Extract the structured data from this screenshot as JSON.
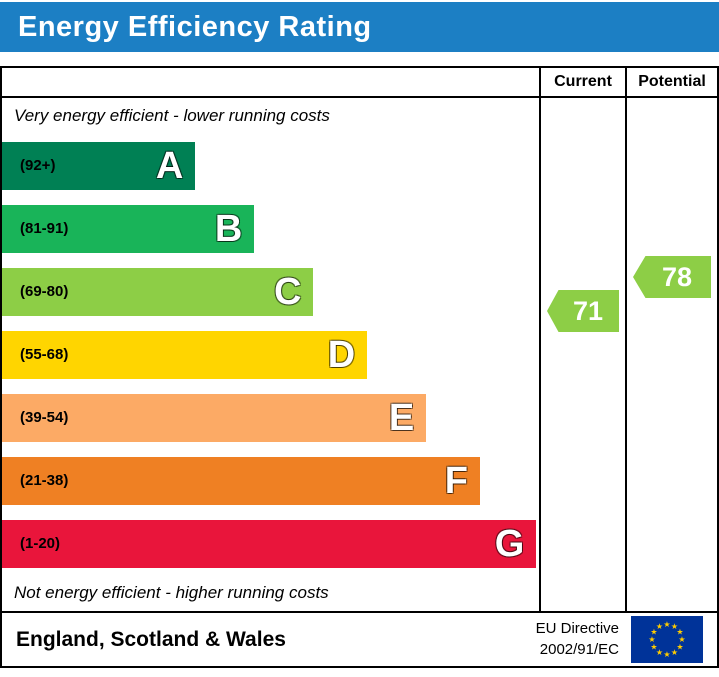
{
  "title": "Energy Efficiency Rating",
  "colors": {
    "title_bg": "#1c7fc4",
    "band_a": "#008054",
    "band_b": "#19b459",
    "band_c": "#8dce46",
    "band_d": "#ffd500",
    "band_e": "#fcaa65",
    "band_f": "#ef8023",
    "band_g": "#e9153b",
    "eu_flag_blue": "#003399",
    "eu_flag_star": "#ffcc00"
  },
  "columns": {
    "current_label": "Current",
    "potential_label": "Potential"
  },
  "notes": {
    "top": "Very energy efficient - lower running costs",
    "bottom": "Not energy efficient - higher running costs"
  },
  "footer": {
    "region": "England, Scotland & Wales",
    "directive_line1": "EU Directive",
    "directive_line2": "2002/91/EC",
    "flag_icon": "eu-flag-icon"
  },
  "chart_data": {
    "type": "bar",
    "title": "Energy Efficiency Rating",
    "bands": [
      {
        "letter": "A",
        "range": "(92+)",
        "min": 92,
        "max": 100,
        "color": "#008054",
        "width_pct": 36
      },
      {
        "letter": "B",
        "range": "(81-91)",
        "min": 81,
        "max": 91,
        "color": "#19b459",
        "width_pct": 47
      },
      {
        "letter": "C",
        "range": "(69-80)",
        "min": 69,
        "max": 80,
        "color": "#8dce46",
        "width_pct": 58
      },
      {
        "letter": "D",
        "range": "(55-68)",
        "min": 55,
        "max": 68,
        "color": "#ffd500",
        "width_pct": 68
      },
      {
        "letter": "E",
        "range": "(39-54)",
        "min": 39,
        "max": 54,
        "color": "#fcaa65",
        "width_pct": 79
      },
      {
        "letter": "F",
        "range": "(21-38)",
        "min": 21,
        "max": 38,
        "color": "#ef8023",
        "width_pct": 89
      },
      {
        "letter": "G",
        "range": "(1-20)",
        "min": 1,
        "max": 20,
        "color": "#e9153b",
        "width_pct": 99.5
      }
    ],
    "current": {
      "value": 71,
      "band": "C",
      "color": "#8dce46"
    },
    "potential": {
      "value": 78,
      "band": "C",
      "color": "#8dce46"
    }
  }
}
